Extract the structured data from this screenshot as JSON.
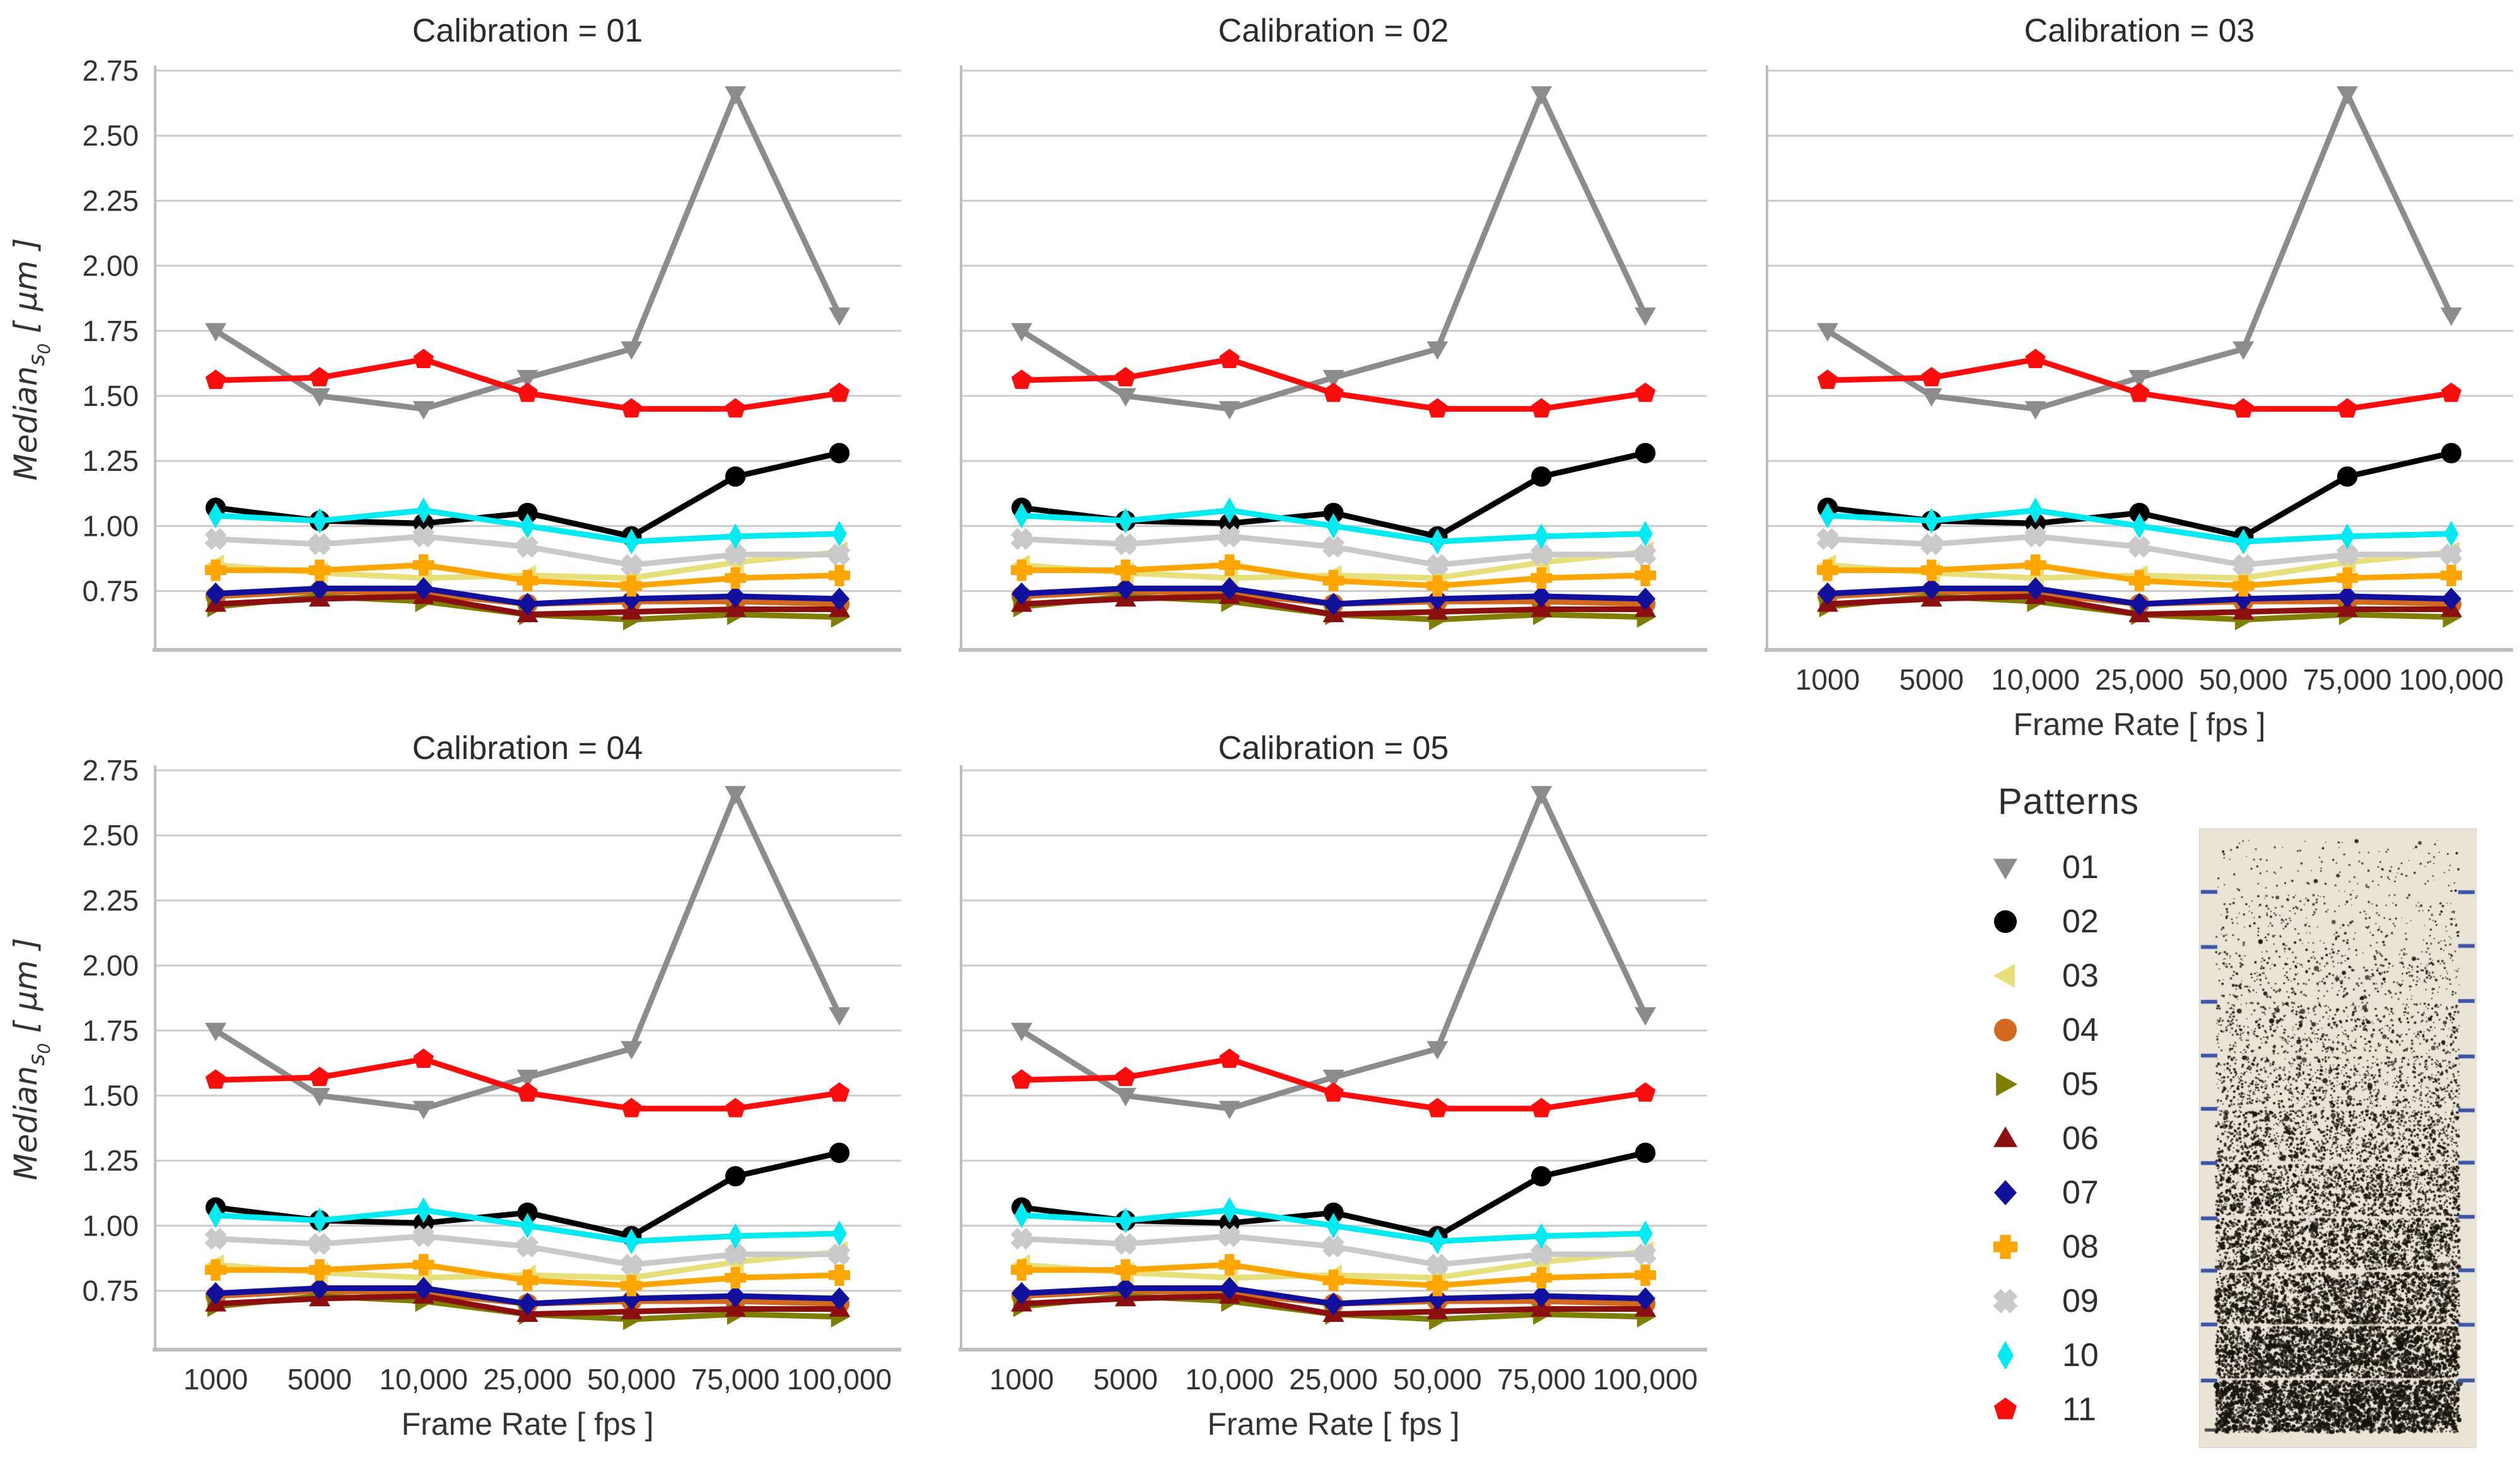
{
  "figure": {
    "facet_titles": [
      "Calibration = 01",
      "Calibration = 02",
      "Calibration = 03",
      "Calibration = 04",
      "Calibration = 05"
    ]
  },
  "axes": {
    "xlabel": "Frame Rate [ fps ]",
    "ylabel_main": "Median",
    "ylabel_sub": "s",
    "ylabel_subsub": "0",
    "ylabel_units": " [ μm ]",
    "x_tick_labels": [
      "1000",
      "5000",
      "10,000",
      "25,000",
      "50,000",
      "75,000",
      "100,000"
    ],
    "y_tick_labels": [
      "0.75",
      "1.00",
      "1.25",
      "1.50",
      "1.75",
      "2.00",
      "2.25",
      "2.50",
      "2.75"
    ]
  },
  "legend": {
    "title": "Patterns",
    "items": [
      {
        "label": "01"
      },
      {
        "label": "02"
      },
      {
        "label": "03"
      },
      {
        "label": "04"
      },
      {
        "label": "05"
      },
      {
        "label": "06"
      },
      {
        "label": "07"
      },
      {
        "label": "08"
      },
      {
        "label": "09"
      },
      {
        "label": "10"
      },
      {
        "label": "11"
      }
    ]
  },
  "chart_data": {
    "type": "line",
    "facet_variable": "Calibration",
    "facets": [
      "01",
      "02",
      "03",
      "04",
      "05"
    ],
    "facet_note": "all five facets show the same curves",
    "x": [
      1000,
      5000,
      10000,
      25000,
      50000,
      75000,
      100000
    ],
    "x_scale": "categorical-equal-spacing",
    "xlabel": "Frame Rate [ fps ]",
    "ylabel": "Median_s0 [ um ]",
    "ylim": [
      0.53,
      2.75
    ],
    "y_ticks": [
      0.75,
      1.0,
      1.25,
      1.5,
      1.75,
      2.0,
      2.25,
      2.5,
      2.75
    ],
    "grid": true,
    "legend_position": "lower right outside",
    "series": [
      {
        "name": "01",
        "color": "#8c8c8c",
        "marker": "triangle-down",
        "values": [
          1.75,
          1.5,
          1.45,
          1.57,
          1.68,
          2.66,
          1.81
        ]
      },
      {
        "name": "02",
        "color": "#000000",
        "marker": "circle",
        "values": [
          1.07,
          1.02,
          1.01,
          1.05,
          0.96,
          1.19,
          1.28
        ]
      },
      {
        "name": "03",
        "color": "#e7df7a",
        "marker": "triangle-left",
        "values": [
          0.85,
          0.82,
          0.8,
          0.81,
          0.8,
          0.86,
          0.9
        ]
      },
      {
        "name": "04",
        "color": "#d2691e",
        "marker": "circle",
        "values": [
          0.73,
          0.75,
          0.74,
          0.7,
          0.71,
          0.71,
          0.7
        ]
      },
      {
        "name": "05",
        "color": "#7e7f00",
        "marker": "triangle-right",
        "values": [
          0.69,
          0.73,
          0.71,
          0.66,
          0.64,
          0.66,
          0.65
        ]
      },
      {
        "name": "06",
        "color": "#8b0f0f",
        "marker": "triangle-up",
        "values": [
          0.7,
          0.72,
          0.73,
          0.66,
          0.67,
          0.68,
          0.68
        ]
      },
      {
        "name": "07",
        "color": "#10109c",
        "marker": "diamond",
        "values": [
          0.74,
          0.76,
          0.76,
          0.7,
          0.72,
          0.73,
          0.72
        ]
      },
      {
        "name": "08",
        "color": "#ffa502",
        "marker": "plus",
        "values": [
          0.83,
          0.83,
          0.85,
          0.79,
          0.77,
          0.8,
          0.81
        ]
      },
      {
        "name": "09",
        "color": "#c9c9c9",
        "marker": "x-filled",
        "values": [
          0.95,
          0.93,
          0.96,
          0.92,
          0.85,
          0.89,
          0.89
        ]
      },
      {
        "name": "10",
        "color": "#00eaf2",
        "marker": "thin-diamond",
        "values": [
          1.04,
          1.02,
          1.06,
          1.0,
          0.94,
          0.96,
          0.97
        ]
      },
      {
        "name": "11",
        "color": "#fb0d0d",
        "marker": "pentagon",
        "values": [
          1.56,
          1.57,
          1.64,
          1.51,
          1.45,
          1.45,
          1.51
        ]
      }
    ]
  },
  "pattern_image": {
    "kind": "speckle calibration strip photo",
    "bands": 11,
    "band_densities": [
      0.025,
      0.05,
      0.08,
      0.12,
      0.17,
      0.24,
      0.32,
      0.4,
      0.47,
      0.54,
      0.62
    ],
    "background_color": "#eae4d6",
    "dot_color": "#17130d",
    "tick_color": "#3a55a8"
  },
  "style": {
    "grid_color": "#cccccc",
    "spine_color": "#bdbdbd",
    "text_color": "#333333",
    "title_color": "#2b2b2b"
  }
}
